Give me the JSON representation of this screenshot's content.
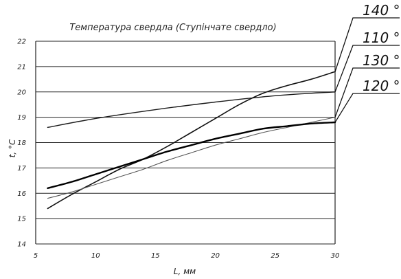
{
  "chart_data": {
    "type": "line",
    "title": "Температура свердла (Ступінчате свердло)",
    "xlabel": "L, мм",
    "ylabel": "t, °C",
    "xlim": [
      5,
      30
    ],
    "ylim": [
      14,
      22
    ],
    "x_ticks": [
      5,
      10,
      15,
      20,
      25,
      30
    ],
    "y_ticks": [
      14,
      15,
      16,
      17,
      18,
      19,
      20,
      21,
      22
    ],
    "grid": "horizontal",
    "legend": "right, labels with leader lines",
    "series": [
      {
        "name": "140 °",
        "color": "#111111",
        "width": 1.6,
        "x": [
          6,
          8,
          10,
          12,
          14,
          16,
          18,
          20,
          22,
          24,
          26,
          28,
          30
        ],
        "y": [
          15.4,
          15.95,
          16.45,
          16.95,
          17.35,
          17.85,
          18.4,
          18.95,
          19.5,
          19.95,
          20.25,
          20.5,
          20.8
        ]
      },
      {
        "name": "110 °",
        "color": "#1a1a1a",
        "width": 1.4,
        "x": [
          6,
          10,
          15,
          20,
          25,
          30
        ],
        "y": [
          18.6,
          18.95,
          19.3,
          19.6,
          19.85,
          20.0
        ]
      },
      {
        "name": "130 °",
        "color": "#555555",
        "width": 1.1,
        "x": [
          6,
          8,
          10,
          12,
          14,
          16,
          18,
          20,
          22,
          24,
          26,
          28,
          30
        ],
        "y": [
          15.8,
          16.05,
          16.35,
          16.65,
          16.95,
          17.3,
          17.6,
          17.9,
          18.15,
          18.4,
          18.6,
          18.8,
          19.0
        ]
      },
      {
        "name": "120 °",
        "color": "#000000",
        "width": 2.4,
        "x": [
          6,
          8,
          10,
          12,
          14,
          16,
          18,
          20,
          22,
          24,
          26,
          28,
          30
        ],
        "y": [
          16.2,
          16.45,
          16.75,
          17.05,
          17.35,
          17.65,
          17.9,
          18.15,
          18.35,
          18.55,
          18.65,
          18.75,
          18.8
        ]
      }
    ]
  }
}
